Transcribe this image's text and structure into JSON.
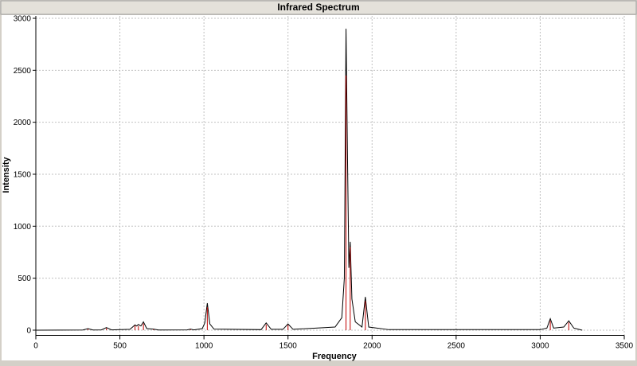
{
  "chart_data": {
    "type": "line",
    "title": "Infrared Spectrum",
    "x_label": "Frequency",
    "y_label": "Intensity",
    "series": [
      {
        "color": "#000000",
        "x": [
          0,
          280,
          310,
          340,
          390,
          420,
          450,
          560,
          590,
          600,
          610,
          625,
          640,
          660,
          700,
          730,
          900,
          920,
          940,
          990,
          1005,
          1020,
          1035,
          1060,
          1340,
          1370,
          1400,
          1470,
          1500,
          1530,
          1780,
          1820,
          1835,
          1845,
          1855,
          1862,
          1870,
          1880,
          1900,
          1940,
          1960,
          1980,
          2100,
          3000,
          3040,
          3060,
          3080,
          3140,
          3170,
          3200,
          3250
        ],
        "values": [
          0,
          2,
          15,
          2,
          3,
          25,
          3,
          8,
          50,
          40,
          55,
          40,
          80,
          15,
          10,
          2,
          3,
          10,
          3,
          15,
          70,
          260,
          60,
          10,
          5,
          70,
          8,
          8,
          60,
          8,
          30,
          120,
          500,
          2900,
          1500,
          600,
          850,
          300,
          80,
          30,
          320,
          30,
          5,
          5,
          20,
          110,
          20,
          30,
          90,
          20,
          0
        ]
      },
      {
        "type": "stick",
        "color": "#c00000",
        "x": [
          310,
          420,
          590,
          610,
          640,
          700,
          920,
          1020,
          1370,
          1500,
          1845,
          1870,
          1960,
          3060,
          3170
        ],
        "values": [
          12,
          20,
          45,
          40,
          65,
          8,
          8,
          220,
          55,
          50,
          2450,
          800,
          280,
          90,
          75
        ]
      }
    ],
    "xlim": [
      0,
      3500
    ],
    "xticks": [
      0,
      500,
      1000,
      1500,
      2000,
      2500,
      3000,
      3500
    ],
    "ylim": [
      -50,
      3000
    ],
    "yticks": [
      0,
      500,
      1000,
      1500,
      2000,
      2500,
      3000
    ],
    "grid": true
  }
}
